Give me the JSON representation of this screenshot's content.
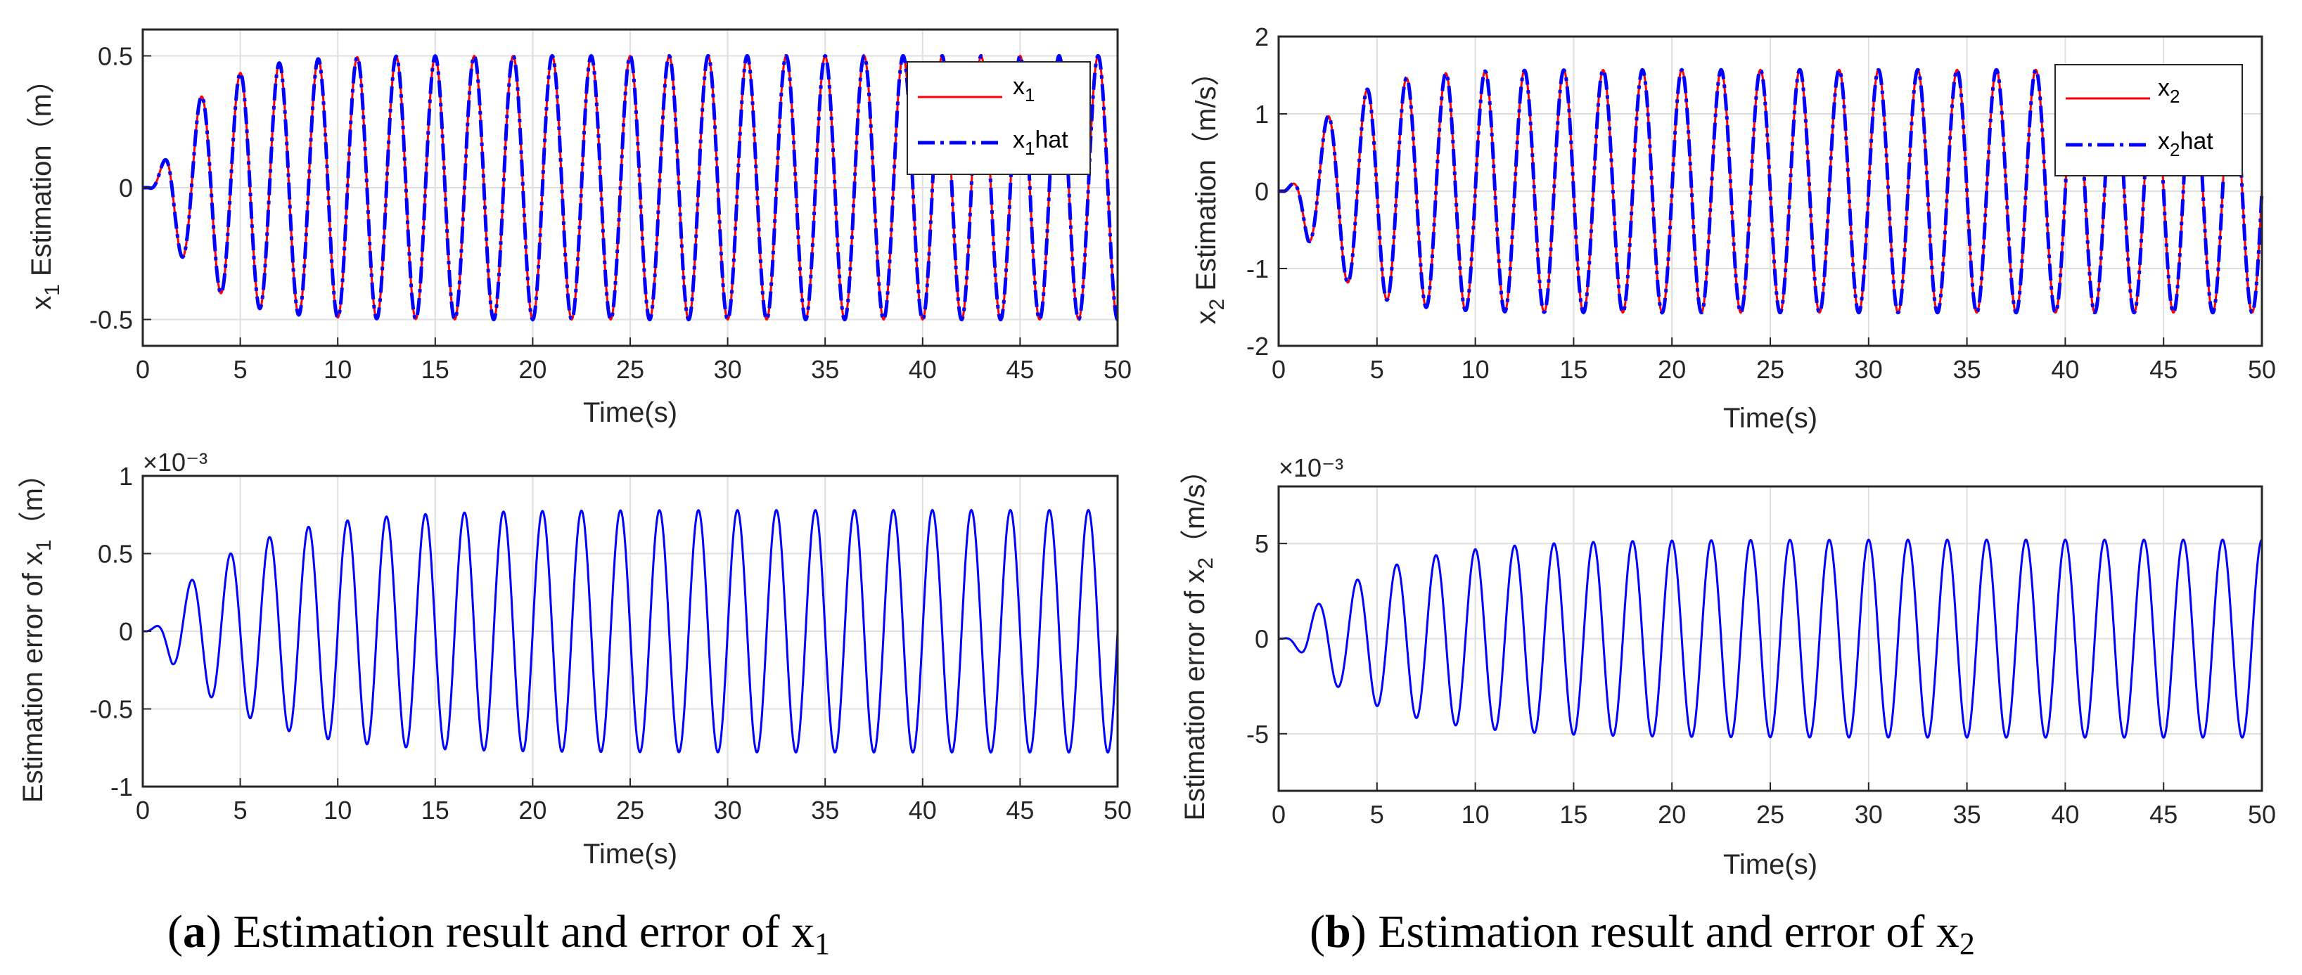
{
  "colors": {
    "actual": "#ff0000",
    "estimate": "#0000ff",
    "error": "#0000ff",
    "grid": "#dfdfdf",
    "axis": "#262626"
  },
  "chart_data": [
    {
      "id": "a1",
      "type": "line",
      "xlabel": "Time(s)",
      "ylabel_main": "x",
      "ylabel_sub": "1",
      "ylabel_rest": " Estimation（m）",
      "xlim": [
        0,
        50
      ],
      "ylim": [
        -0.6,
        0.6
      ],
      "xticks": [
        0,
        5,
        10,
        15,
        20,
        25,
        30,
        35,
        40,
        45,
        50
      ],
      "yticks": [
        -0.5,
        0,
        0.5
      ],
      "ytick_labels": [
        "-0.5",
        "0",
        "0.5"
      ],
      "legend": [
        {
          "main": "x",
          "sub": "1",
          "rest": "",
          "style": "solid",
          "color": "#ff0000"
        },
        {
          "main": "x",
          "sub": "1",
          "rest": "hat",
          "style": "dashdot",
          "color": "#0000ff"
        }
      ],
      "legend_position": "top-right",
      "series": [
        {
          "name": "x1",
          "style": "solid",
          "color": "#ff0000",
          "amplitude": 0.5,
          "period": 2.0,
          "phase": 0.0,
          "growth": 2.3,
          "start": 0.3
        },
        {
          "name": "x1 hat",
          "style": "dashdot",
          "color": "#0000ff",
          "amplitude": 0.5,
          "period": 2.0,
          "phase": 0.0,
          "growth": 2.3,
          "start": 0.3
        }
      ]
    },
    {
      "id": "a2",
      "type": "line",
      "xlabel": "Time(s)",
      "ylabel_main": "Estimation error of x",
      "ylabel_sub": "1",
      "ylabel_rest": "（m）",
      "exponent": "×10⁻³",
      "xlim": [
        0,
        50
      ],
      "ylim": [
        -1,
        1
      ],
      "xticks": [
        0,
        5,
        10,
        15,
        20,
        25,
        30,
        35,
        40,
        45,
        50
      ],
      "yticks": [
        -1,
        -0.5,
        0,
        0.5,
        1
      ],
      "ytick_labels": [
        "-1",
        "-0.5",
        "0",
        "0.5",
        "1"
      ],
      "series": [
        {
          "name": "error x1",
          "style": "solid",
          "color": "#0000ff",
          "amplitude": 0.78,
          "period": 2.0,
          "phase": 1.57,
          "growth": 4.2,
          "start": 0.2
        }
      ]
    },
    {
      "id": "b1",
      "type": "line",
      "xlabel": "Time(s)",
      "ylabel_main": "x",
      "ylabel_sub": "2",
      "ylabel_rest": " Estimation（m/s）",
      "xlim": [
        0,
        50
      ],
      "ylim": [
        -2,
        2
      ],
      "xticks": [
        0,
        5,
        10,
        15,
        20,
        25,
        30,
        35,
        40,
        45,
        50
      ],
      "yticks": [
        -2,
        -1,
        0,
        1,
        2
      ],
      "ytick_labels": [
        "-2",
        "-1",
        "0",
        "1",
        "2"
      ],
      "legend": [
        {
          "main": "x",
          "sub": "2",
          "rest": "",
          "style": "solid",
          "color": "#ff0000"
        },
        {
          "main": "x",
          "sub": "2",
          "rest": "hat",
          "style": "dashdot",
          "color": "#0000ff"
        }
      ],
      "legend_position": "top-right",
      "series": [
        {
          "name": "x2",
          "style": "solid",
          "color": "#ff0000",
          "amplitude": 1.57,
          "period": 2.0,
          "phase": 1.57,
          "growth": 2.3,
          "start": 0.3
        },
        {
          "name": "x2 hat",
          "style": "dashdot",
          "color": "#0000ff",
          "amplitude": 1.57,
          "period": 2.0,
          "phase": 1.57,
          "growth": 2.3,
          "start": 0.3
        }
      ]
    },
    {
      "id": "b2",
      "type": "line",
      "xlabel": "Time(s)",
      "ylabel_main": "Estimation error of x",
      "ylabel_sub": "2",
      "ylabel_rest": "（m/s）",
      "exponent": "×10⁻³",
      "xlim": [
        0,
        50
      ],
      "ylim": [
        -8,
        8
      ],
      "xticks": [
        0,
        5,
        10,
        15,
        20,
        25,
        30,
        35,
        40,
        45,
        50
      ],
      "yticks": [
        -5,
        0,
        5
      ],
      "ytick_labels": [
        "-5",
        "0",
        "5"
      ],
      "series": [
        {
          "name": "error x2",
          "style": "solid",
          "color": "#0000ff",
          "amplitude": 5.2,
          "period": 2.0,
          "phase": 3.14,
          "growth": 4.2,
          "start": 0.2
        }
      ]
    }
  ],
  "captions": {
    "a": {
      "label": "a",
      "text": " Estimation result and error of x",
      "sub": "1"
    },
    "b": {
      "label": "b",
      "text": " Estimation result and error of x",
      "sub": "2"
    }
  }
}
